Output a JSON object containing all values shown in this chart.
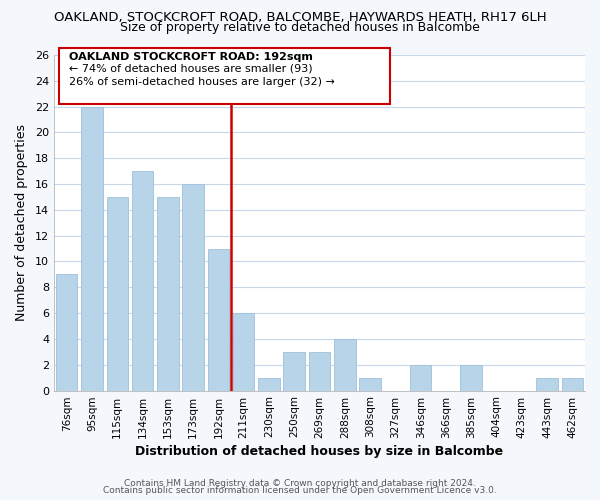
{
  "title1": "OAKLAND, STOCKCROFT ROAD, BALCOMBE, HAYWARDS HEATH, RH17 6LH",
  "title2": "Size of property relative to detached houses in Balcombe",
  "xlabel": "Distribution of detached houses by size in Balcombe",
  "ylabel": "Number of detached properties",
  "bin_labels": [
    "76sqm",
    "95sqm",
    "115sqm",
    "134sqm",
    "153sqm",
    "173sqm",
    "192sqm",
    "211sqm",
    "230sqm",
    "250sqm",
    "269sqm",
    "288sqm",
    "308sqm",
    "327sqm",
    "346sqm",
    "366sqm",
    "385sqm",
    "404sqm",
    "423sqm",
    "443sqm",
    "462sqm"
  ],
  "bin_values": [
    9,
    22,
    15,
    17,
    15,
    16,
    11,
    6,
    1,
    3,
    3,
    4,
    1,
    0,
    2,
    0,
    2,
    0,
    0,
    1,
    1
  ],
  "highlight_index": 6,
  "bar_color": "#b8d4e8",
  "bar_edge_color": "#a0c0dc",
  "highlight_line_color": "#cc0000",
  "ylim": [
    0,
    26
  ],
  "yticks": [
    0,
    2,
    4,
    6,
    8,
    10,
    12,
    14,
    16,
    18,
    20,
    22,
    24,
    26
  ],
  "annotation_title": "OAKLAND STOCKCROFT ROAD: 192sqm",
  "annotation_line1": "← 74% of detached houses are smaller (93)",
  "annotation_line2": "26% of semi-detached houses are larger (32) →",
  "footer1": "Contains HM Land Registry data © Crown copyright and database right 2024.",
  "footer2": "Contains public sector information licensed under the Open Government Licence v3.0.",
  "background_color": "#f4f8fc",
  "plot_bg_color": "#ffffff",
  "grid_color": "#c8d8e8"
}
